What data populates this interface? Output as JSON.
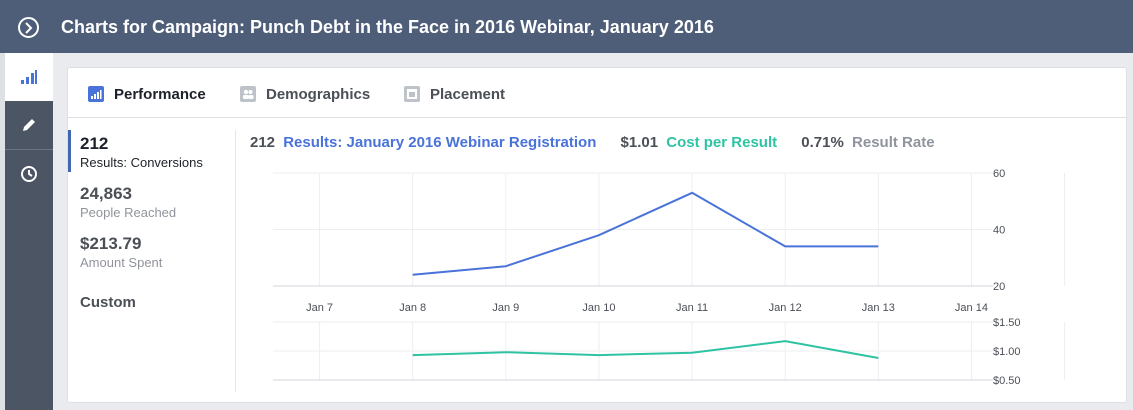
{
  "header": {
    "title": "Charts for Campaign: Punch Debt in the Face in 2016 Webinar, January 2016"
  },
  "tabs": [
    {
      "label": "Performance",
      "icon": "bar-chart-icon"
    },
    {
      "label": "Demographics",
      "icon": "people-icon"
    },
    {
      "label": "Placement",
      "icon": "placement-icon"
    }
  ],
  "stats": [
    {
      "value": "212",
      "label": "Results: Conversions"
    },
    {
      "value": "24,863",
      "label": "People Reached"
    },
    {
      "value": "$213.79",
      "label": "Amount Spent"
    }
  ],
  "custom_label": "Custom",
  "summary": {
    "results_value": "212",
    "results_label": "Results: January 2016 Webinar Registration",
    "cpr_value": "$1.01",
    "cpr_label": "Cost per Result",
    "rate_value": "0.71%",
    "rate_label": "Result Rate"
  },
  "colors": {
    "results": "#4a73d9",
    "cost": "#2fc3a4",
    "rate": "#90949c",
    "header": "#4e5d78"
  },
  "chart_data": [
    {
      "type": "line",
      "categories": [
        "Jan 7",
        "Jan 8",
        "Jan 9",
        "Jan 10",
        "Jan 11",
        "Jan 12",
        "Jan 13",
        "Jan 14"
      ],
      "series": [
        {
          "name": "Results: January 2016 Webinar Registration",
          "values": [
            null,
            24,
            27,
            38,
            53,
            34,
            34,
            null
          ]
        }
      ],
      "y_ticks": [
        "60",
        "40",
        "20"
      ],
      "ylim": [
        20,
        60
      ],
      "grid": true
    },
    {
      "type": "line",
      "categories": [
        "Jan 7",
        "Jan 8",
        "Jan 9",
        "Jan 10",
        "Jan 11",
        "Jan 12",
        "Jan 13",
        "Jan 14"
      ],
      "series": [
        {
          "name": "Cost per Result",
          "values": [
            null,
            0.93,
            0.98,
            0.93,
            0.97,
            1.17,
            0.88,
            null
          ]
        }
      ],
      "y_ticks": [
        "$1.50",
        "$1.00",
        "$0.50"
      ],
      "ylim": [
        0.5,
        1.5
      ],
      "grid": true
    }
  ]
}
